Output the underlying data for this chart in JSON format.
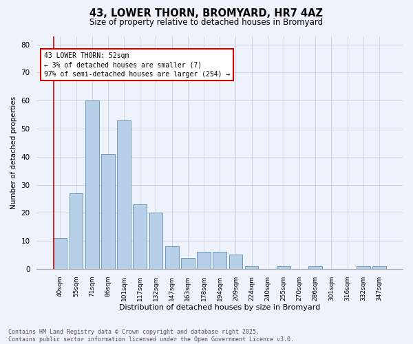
{
  "title": "43, LOWER THORN, BROMYARD, HR7 4AZ",
  "subtitle": "Size of property relative to detached houses in Bromyard",
  "xlabel": "Distribution of detached houses by size in Bromyard",
  "ylabel": "Number of detached properties",
  "categories": [
    "40sqm",
    "55sqm",
    "71sqm",
    "86sqm",
    "101sqm",
    "117sqm",
    "132sqm",
    "147sqm",
    "163sqm",
    "178sqm",
    "194sqm",
    "209sqm",
    "224sqm",
    "240sqm",
    "255sqm",
    "270sqm",
    "286sqm",
    "301sqm",
    "316sqm",
    "332sqm",
    "347sqm"
  ],
  "values": [
    11,
    27,
    60,
    41,
    53,
    23,
    20,
    8,
    4,
    6,
    6,
    5,
    1,
    0,
    1,
    0,
    1,
    0,
    0,
    1,
    1
  ],
  "bar_color": "#b8cfe8",
  "bar_edge_color": "#5b8db8",
  "highlight_line_color": "#cc0000",
  "ylim": [
    0,
    83
  ],
  "yticks": [
    0,
    10,
    20,
    30,
    40,
    50,
    60,
    70,
    80
  ],
  "annotation_text": "43 LOWER THORN: 52sqm\n← 3% of detached houses are smaller (7)\n97% of semi-detached houses are larger (254) →",
  "annotation_box_color": "#cc0000",
  "background_color": "#eef2fb",
  "grid_color": "#c8d0e0",
  "footer_line1": "Contains HM Land Registry data © Crown copyright and database right 2025.",
  "footer_line2": "Contains public sector information licensed under the Open Government Licence v3.0."
}
